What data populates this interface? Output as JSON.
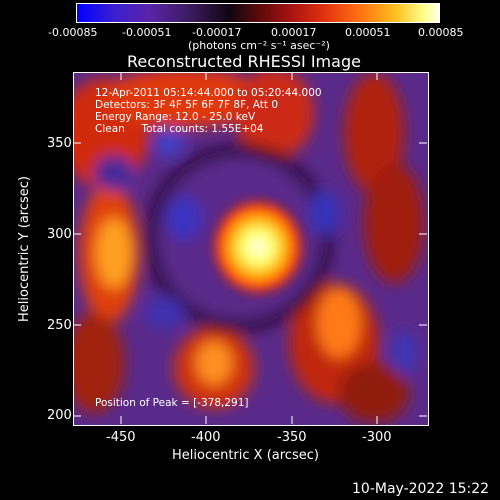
{
  "colorbar": {
    "ticks": [
      "-0.00085",
      "-0.00051",
      "-0.00017",
      "0.00017",
      "0.00051",
      "0.00085"
    ],
    "units": "(photons cm⁻² s⁻¹ asec⁻²)"
  },
  "plot": {
    "title": "Reconstructed RHESSI Image",
    "annotations": {
      "time_range": "12-Apr-2011 05:14:44.000 to 05:20:44.000",
      "detectors": "Detectors: 3F 4F 5F 6F 7F 8F, Att 0",
      "energy_range": "Energy Range: 12.0 - 25.0 keV",
      "clean_counts": "Clean     Total counts: 1.55E+04",
      "peak_position": "Position of Peak = [-378,291]"
    },
    "x_axis": {
      "label": "Heliocentric X (arcsec)",
      "ticks": [
        "-450",
        "-400",
        "-350",
        "-300"
      ]
    },
    "y_axis": {
      "label": "Heliocentric Y (arcsec)",
      "ticks": [
        "350",
        "300",
        "250",
        "200"
      ]
    }
  },
  "footer": {
    "timestamp": "10-May-2022 15:22"
  }
}
